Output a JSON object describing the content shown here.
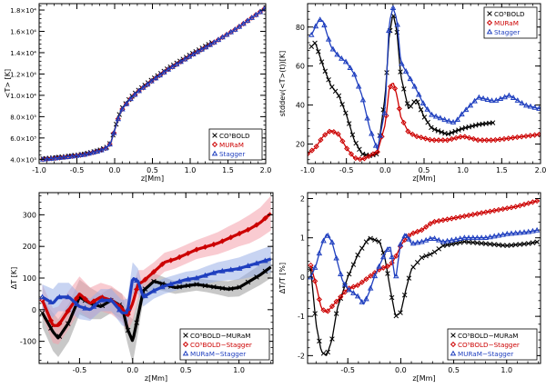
{
  "chart_data": [
    {
      "type": "line",
      "xlabel": "z[Mm]",
      "ylabel": "<T> [K]",
      "xlim": [
        -1.0,
        2.0
      ],
      "ylim": [
        3600,
        18600
      ],
      "xticks": [
        -1.0,
        -0.5,
        0.0,
        0.5,
        1.0,
        1.5,
        2.0
      ],
      "xtick_labels": [
        "-1.0",
        "-0.5",
        "0.0",
        "0.5",
        "1.0",
        "1.5",
        "2.0"
      ],
      "yticks": [
        4000,
        6000,
        8000,
        10000,
        12000,
        14000,
        16000,
        18000
      ],
      "ytick_labels": [
        "4.0×10³",
        "6.0×10³",
        "8.0×10³",
        "1.0×10⁴",
        "1.2×10⁴",
        "1.4×10⁴",
        "1.6×10⁴",
        "1.8×10⁴"
      ],
      "legend_position": "bottom-right",
      "series": [
        {
          "name": "CO⁵BOLD",
          "marker": "x",
          "color": "#000000",
          "x": [
            -0.95,
            -0.8,
            -0.6,
            -0.4,
            -0.2,
            -0.1,
            -0.05,
            0.0,
            0.05,
            0.1,
            0.2,
            0.3,
            0.5,
            0.7,
            1.0,
            1.3
          ],
          "y": [
            4050,
            4150,
            4300,
            4500,
            4850,
            5150,
            5600,
            6800,
            8000,
            8800,
            9700,
            10400,
            11500,
            12500,
            13800,
            15000
          ]
        },
        {
          "name": "MURaM",
          "marker": "diamond",
          "color": "#cc0000",
          "x": [
            -0.95,
            -0.8,
            -0.6,
            -0.4,
            -0.2,
            -0.1,
            -0.05,
            0.0,
            0.05,
            0.1,
            0.2,
            0.3,
            0.5,
            0.7,
            1.0,
            1.3,
            1.6,
            2.0
          ],
          "y": [
            4000,
            4100,
            4250,
            4450,
            4800,
            5100,
            5550,
            6700,
            7900,
            8700,
            9600,
            10300,
            11400,
            12400,
            13700,
            14900,
            16200,
            18200
          ]
        },
        {
          "name": "Stagger",
          "marker": "triangle",
          "color": "#1f3fbf",
          "x": [
            -0.95,
            -0.8,
            -0.6,
            -0.4,
            -0.2,
            -0.1,
            -0.05,
            0.0,
            0.05,
            0.1,
            0.2,
            0.3,
            0.5,
            0.7,
            1.0,
            1.3,
            1.6,
            2.0
          ],
          "y": [
            4000,
            4100,
            4250,
            4450,
            4800,
            5100,
            5550,
            6700,
            7900,
            8700,
            9600,
            10300,
            11400,
            12400,
            13700,
            14900,
            16200,
            18200
          ]
        }
      ]
    },
    {
      "type": "line",
      "xlabel": "z[Mm]",
      "ylabel": "stddev(<T>(t))[K]",
      "xlim": [
        -1.0,
        2.0
      ],
      "ylim": [
        10,
        92
      ],
      "xticks": [
        -1.0,
        -0.5,
        0.0,
        0.5,
        1.0,
        1.5,
        2.0
      ],
      "xtick_labels": [
        "-1.0",
        "-0.5",
        "0.0",
        "0.5",
        "1.0",
        "1.5",
        "2.0"
      ],
      "yticks": [
        20,
        40,
        60,
        80
      ],
      "ytick_labels": [
        "20",
        "40",
        "60",
        "80"
      ],
      "legend_position": "top-right",
      "series": [
        {
          "name": "CO⁵BOLD",
          "marker": "x",
          "color": "#000000",
          "x": [
            -0.95,
            -0.9,
            -0.8,
            -0.7,
            -0.6,
            -0.5,
            -0.4,
            -0.3,
            -0.2,
            -0.1,
            0.0,
            0.05,
            0.1,
            0.15,
            0.2,
            0.3,
            0.4,
            0.5,
            0.6,
            0.8,
            1.0,
            1.2,
            1.4
          ],
          "y": [
            70,
            72,
            60,
            50,
            45,
            35,
            22,
            15,
            14,
            15,
            45,
            75,
            87,
            78,
            55,
            38,
            43,
            34,
            28,
            25,
            28,
            30,
            31
          ]
        },
        {
          "name": "MURaM",
          "marker": "diamond",
          "color": "#cc0000",
          "x": [
            -1.0,
            -0.9,
            -0.8,
            -0.7,
            -0.6,
            -0.5,
            -0.4,
            -0.3,
            -0.2,
            -0.1,
            0.0,
            0.05,
            0.1,
            0.15,
            0.2,
            0.3,
            0.4,
            0.6,
            0.8,
            1.0,
            1.2,
            1.4,
            1.6,
            1.8,
            2.0
          ],
          "y": [
            15,
            18,
            24,
            27,
            25,
            18,
            13,
            12,
            14,
            16,
            30,
            48,
            52,
            45,
            34,
            26,
            24,
            22,
            22,
            24,
            22,
            22,
            23,
            24,
            25
          ]
        },
        {
          "name": "Stagger",
          "marker": "triangle",
          "color": "#1f3fbf",
          "x": [
            -0.95,
            -0.9,
            -0.85,
            -0.8,
            -0.7,
            -0.6,
            -0.5,
            -0.4,
            -0.3,
            -0.2,
            -0.1,
            0.0,
            0.05,
            0.1,
            0.15,
            0.2,
            0.3,
            0.4,
            0.5,
            0.6,
            0.8,
            0.9,
            1.0,
            1.2,
            1.4,
            1.6,
            1.8,
            2.0
          ],
          "y": [
            76,
            80,
            84,
            83,
            70,
            65,
            62,
            56,
            45,
            28,
            17,
            38,
            82,
            90,
            84,
            62,
            55,
            48,
            40,
            35,
            32,
            31,
            36,
            44,
            42,
            45,
            40,
            38
          ]
        }
      ]
    },
    {
      "type": "line",
      "xlabel": "z[Mm]",
      "ylabel": "ΔT [K]",
      "xlim": [
        -0.88,
        1.32
      ],
      "ylim": [
        -170,
        370
      ],
      "xticks": [
        -0.5,
        0.0,
        0.5,
        1.0
      ],
      "xtick_labels": [
        "-0.5",
        "0.0",
        "0.5",
        "1.0"
      ],
      "yticks": [
        -100,
        0,
        100,
        200,
        300
      ],
      "ytick_labels": [
        "-100",
        "0",
        "100",
        "200",
        "300"
      ],
      "legend_position": "bottom-right",
      "series": [
        {
          "name": "CO⁵BOLD−MURaM",
          "marker": "x",
          "color": "#000000",
          "band_color": "#9a9a9a",
          "x": [
            -0.85,
            -0.75,
            -0.7,
            -0.6,
            -0.5,
            -0.4,
            -0.3,
            -0.2,
            -0.1,
            -0.05,
            0.0,
            0.05,
            0.1,
            0.2,
            0.3,
            0.4,
            0.5,
            0.6,
            0.7,
            0.8,
            0.9,
            1.0,
            1.1,
            1.2,
            1.3
          ],
          "y": [
            -10,
            -70,
            -90,
            -40,
            40,
            20,
            10,
            30,
            10,
            -60,
            -100,
            -20,
            60,
            90,
            80,
            70,
            75,
            80,
            75,
            70,
            65,
            70,
            90,
            110,
            135
          ],
          "band": [
            45,
            60,
            60,
            60,
            55,
            50,
            40,
            40,
            40,
            45,
            70,
            55,
            30,
            25,
            22,
            20,
            20,
            20,
            20,
            22,
            25,
            28,
            30,
            32,
            35
          ]
        },
        {
          "name": "CO⁵BOLD−Stagger",
          "marker": "diamond",
          "color": "#cc0000",
          "band_color": "#f4a0ac",
          "x": [
            -0.85,
            -0.75,
            -0.7,
            -0.6,
            -0.5,
            -0.4,
            -0.3,
            -0.2,
            -0.1,
            -0.05,
            0.0,
            0.05,
            0.1,
            0.2,
            0.3,
            0.4,
            0.5,
            0.6,
            0.7,
            0.8,
            0.9,
            1.0,
            1.1,
            1.2,
            1.3
          ],
          "y": [
            30,
            -50,
            -50,
            0,
            50,
            20,
            40,
            30,
            5,
            -20,
            20,
            80,
            90,
            120,
            150,
            160,
            175,
            190,
            200,
            210,
            225,
            240,
            255,
            275,
            305
          ],
          "band": [
            50,
            55,
            60,
            60,
            55,
            50,
            45,
            45,
            45,
            50,
            55,
            45,
            35,
            30,
            30,
            30,
            30,
            30,
            32,
            35,
            38,
            40,
            45,
            48,
            55
          ]
        },
        {
          "name": "MURaM−Stagger",
          "marker": "triangle",
          "color": "#1f3fbf",
          "band_color": "#9ab0e8",
          "x": [
            -0.85,
            -0.75,
            -0.7,
            -0.6,
            -0.5,
            -0.4,
            -0.3,
            -0.2,
            -0.1,
            -0.05,
            0.0,
            0.05,
            0.1,
            0.2,
            0.3,
            0.4,
            0.5,
            0.6,
            0.7,
            0.8,
            0.9,
            1.0,
            1.1,
            1.2,
            1.3
          ],
          "y": [
            40,
            20,
            40,
            40,
            10,
            0,
            30,
            30,
            -10,
            -10,
            100,
            90,
            40,
            60,
            75,
            85,
            95,
            100,
            110,
            120,
            125,
            130,
            140,
            150,
            160
          ],
          "band": [
            40,
            45,
            45,
            45,
            40,
            35,
            35,
            35,
            40,
            45,
            50,
            40,
            30,
            25,
            25,
            25,
            25,
            25,
            28,
            30,
            32,
            35,
            38,
            40,
            42
          ]
        }
      ]
    },
    {
      "type": "line",
      "xlabel": "z[Mm]",
      "ylabel": "ΔT/T [%]",
      "xlim": [
        -0.88,
        1.32
      ],
      "ylim": [
        -2.2,
        2.15
      ],
      "xticks": [
        -0.5,
        0.0,
        0.5,
        1.0
      ],
      "xtick_labels": [
        "-0.5",
        "0.0",
        "0.5",
        "1.0"
      ],
      "yticks": [
        -2,
        -1,
        0,
        1,
        2
      ],
      "ytick_labels": [
        "-2",
        "-1",
        "0",
        "1",
        "2"
      ],
      "legend_position": "bottom-right",
      "series": [
        {
          "name": "CO⁵BOLD−MURaM",
          "marker": "x",
          "color": "#000000",
          "x": [
            -0.85,
            -0.8,
            -0.75,
            -0.7,
            -0.65,
            -0.6,
            -0.5,
            -0.4,
            -0.3,
            -0.2,
            -0.15,
            -0.1,
            -0.05,
            0.0,
            0.05,
            0.1,
            0.2,
            0.3,
            0.4,
            0.5,
            0.6,
            0.8,
            1.0,
            1.2,
            1.3
          ],
          "y": [
            0.2,
            -1.2,
            -1.9,
            -2.0,
            -1.6,
            -0.8,
            0.0,
            0.6,
            1.0,
            0.9,
            0.5,
            -0.3,
            -1.0,
            -0.9,
            -0.3,
            0.2,
            0.5,
            0.6,
            0.8,
            0.85,
            0.9,
            0.85,
            0.8,
            0.85,
            0.9
          ]
        },
        {
          "name": "CO⁵BOLD−Stagger",
          "marker": "diamond",
          "color": "#cc0000",
          "x": [
            -0.85,
            -0.8,
            -0.75,
            -0.7,
            -0.6,
            -0.5,
            -0.4,
            -0.3,
            -0.2,
            -0.1,
            -0.05,
            0.0,
            0.05,
            0.1,
            0.2,
            0.3,
            0.5,
            0.7,
            0.9,
            1.1,
            1.3
          ],
          "y": [
            0.3,
            -0.2,
            -0.8,
            -0.9,
            -0.6,
            -0.3,
            -0.2,
            0.0,
            0.2,
            0.3,
            0.5,
            0.8,
            1.0,
            1.1,
            1.2,
            1.4,
            1.5,
            1.6,
            1.7,
            1.8,
            1.95
          ]
        },
        {
          "name": "MURaM−Stagger",
          "marker": "triangle",
          "color": "#1f3fbf",
          "x": [
            -0.85,
            -0.8,
            -0.75,
            -0.7,
            -0.65,
            -0.6,
            -0.55,
            -0.5,
            -0.45,
            -0.4,
            -0.35,
            -0.3,
            -0.25,
            -0.2,
            -0.15,
            -0.1,
            -0.05,
            0.0,
            0.05,
            0.1,
            0.2,
            0.3,
            0.4,
            0.5,
            0.6,
            0.8,
            1.0,
            1.2,
            1.3
          ],
          "y": [
            0.0,
            0.3,
            0.8,
            1.1,
            0.9,
            0.4,
            -0.1,
            -0.3,
            -0.4,
            -0.5,
            -0.7,
            -0.4,
            0.0,
            0.3,
            0.6,
            0.8,
            -0.1,
            0.9,
            1.1,
            0.85,
            0.9,
            1.0,
            0.9,
            0.95,
            1.0,
            1.0,
            1.1,
            1.15,
            1.2
          ]
        }
      ]
    }
  ]
}
